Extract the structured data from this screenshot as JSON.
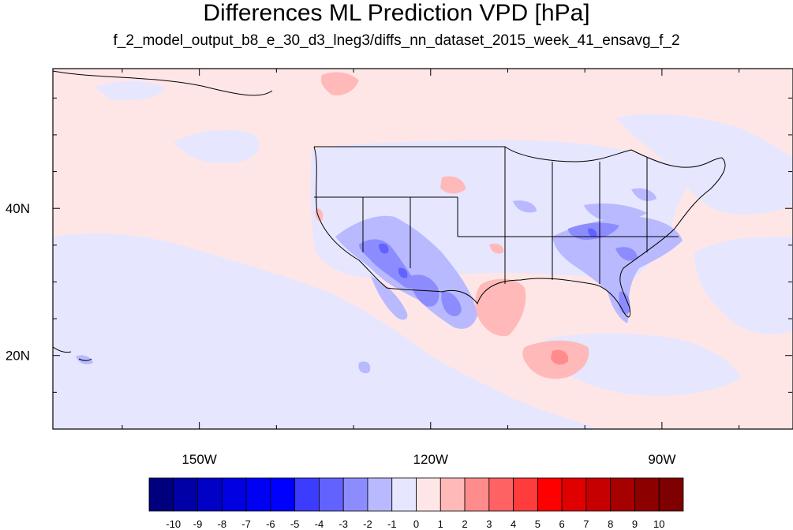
{
  "title": "Differences ML Prediction VPD [hPa]",
  "subtitle": "f_2_model_output_b8_e_30_d3_lneg3/diffs_nn_dataset_2015_week_41_ensavg_f_2",
  "map": {
    "lon_range": [
      -169,
      -73
    ],
    "lat_range": [
      10,
      59
    ],
    "lon_ticks": [
      {
        "lon": -150,
        "label": "150W"
      },
      {
        "lon": -120,
        "label": "120W"
      },
      {
        "lon": -90,
        "label": "90W"
      }
    ],
    "lat_ticks": [
      {
        "lat": 40,
        "label": "40N"
      },
      {
        "lat": 20,
        "label": "20N"
      }
    ],
    "background_value": 0.4
  },
  "colorbar": {
    "labels": [
      "-10",
      "-9",
      "-8",
      "-7",
      "-6",
      "-5",
      "-4",
      "-3",
      "-2",
      "-1",
      "0",
      "1",
      "2",
      "3",
      "4",
      "5",
      "6",
      "7",
      "8",
      "9",
      "10"
    ],
    "colors": [
      "#00007f",
      "#0000a6",
      "#0000c6",
      "#0000e0",
      "#0000f2",
      "#0000ff",
      "#3c3cff",
      "#6262ff",
      "#8c8cff",
      "#b9b9ff",
      "#e6e6ff",
      "#ffe6e6",
      "#ffb9b9",
      "#ff8c8c",
      "#ff6262",
      "#ff3c3c",
      "#ff0000",
      "#e00000",
      "#c60000",
      "#a60000",
      "#8c0000",
      "#7f0000"
    ]
  }
}
